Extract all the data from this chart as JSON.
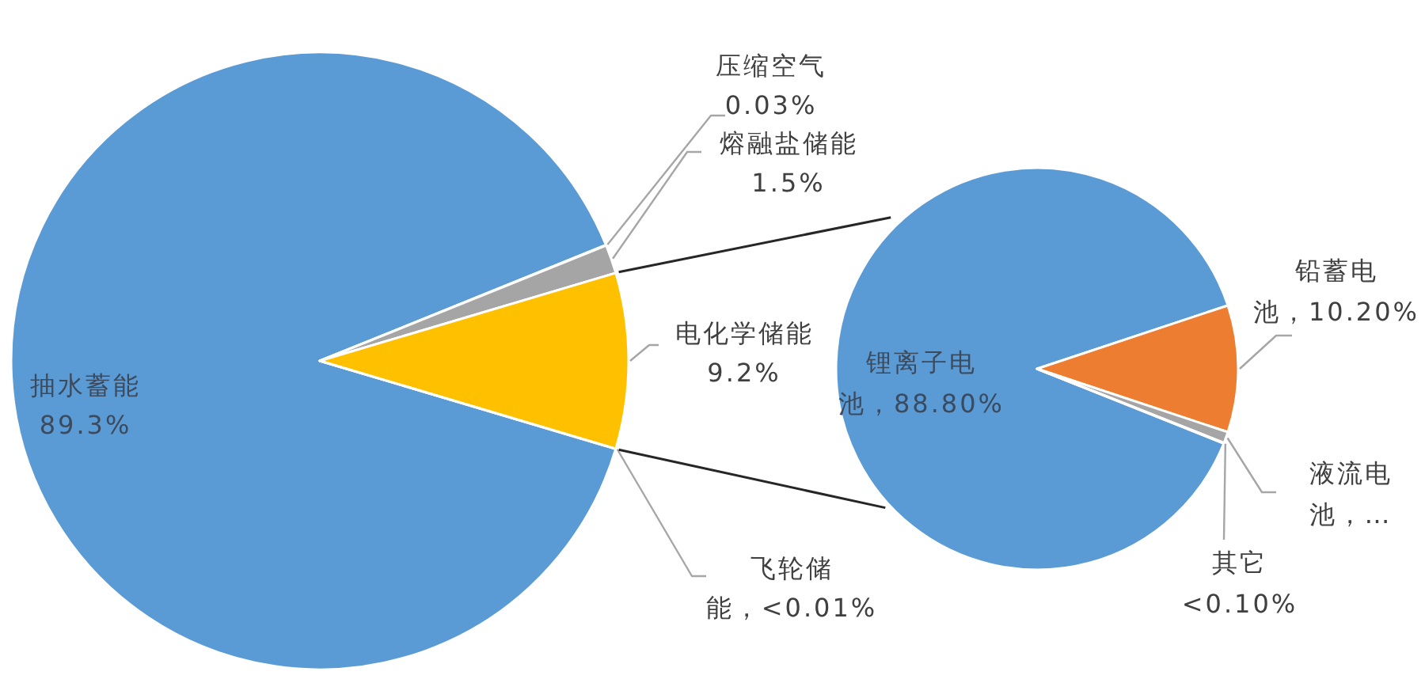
{
  "chart_data": [
    {
      "type": "pie",
      "categories": [
        "抽水蓄能",
        "压缩空气",
        "熔融盐储能",
        "电化学储能",
        "飞轮储能"
      ],
      "values": [
        89.3,
        0.03,
        1.5,
        9.2,
        0.005
      ],
      "colors": [
        "#5b9bd5",
        "#ed7d31",
        "#a5a5a5",
        "#ffc000",
        "#4472c4"
      ],
      "value_labels": [
        "89.3%",
        "0.03%",
        "1.5%",
        "9.2%",
        "<0.01%"
      ]
    },
    {
      "type": "pie",
      "categories": [
        "锂离子电池",
        "铅蓄电池",
        "液流电池",
        "其它"
      ],
      "values": [
        88.8,
        10.2,
        0.9,
        0.05
      ],
      "colors": [
        "#5b9bd5",
        "#ed7d31",
        "#a5a5a5",
        "#ffc000"
      ],
      "value_labels": [
        "88.80%",
        "10.20%",
        "…",
        "<0.10%"
      ]
    }
  ]
}
